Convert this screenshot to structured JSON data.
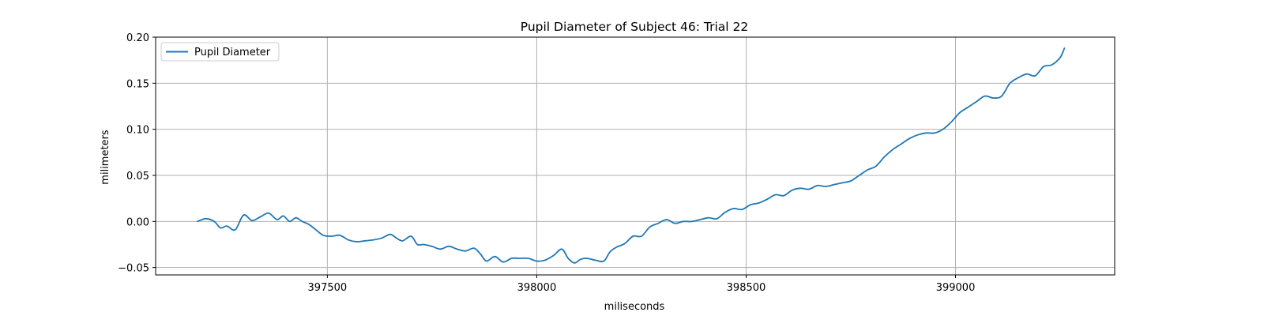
{
  "chart_data": {
    "type": "line",
    "title": "Pupil Diameter of Subject 46: Trial 22",
    "xlabel": "miliseconds",
    "ylabel": "milimeters",
    "xlim": [
      397090,
      399380
    ],
    "ylim": [
      -0.058,
      0.2
    ],
    "xticks": [
      397500,
      398000,
      398500,
      399000
    ],
    "yticks": [
      -0.05,
      0.0,
      0.05,
      0.1,
      0.15,
      0.2
    ],
    "xtick_labels": [
      "397500",
      "398000",
      "398500",
      "399000"
    ],
    "ytick_labels": [
      "−0.05",
      "0.00",
      "0.05",
      "0.10",
      "0.15",
      "0.20"
    ],
    "grid": true,
    "legend": {
      "position": "top-left",
      "entries": [
        "Pupil Diameter"
      ]
    },
    "series": [
      {
        "name": "Pupil Diameter",
        "color": "#1f77b4",
        "x": [
          397190,
          397210,
          397230,
          397245,
          397260,
          397280,
          397300,
          397320,
          397340,
          397360,
          397380,
          397395,
          397410,
          397425,
          397440,
          397455,
          397470,
          397490,
          397510,
          397530,
          397550,
          397570,
          397590,
          397610,
          397630,
          397650,
          397665,
          397680,
          397700,
          397715,
          397730,
          397750,
          397770,
          397790,
          397810,
          397830,
          397850,
          397865,
          397880,
          397900,
          397920,
          397940,
          397960,
          397980,
          398000,
          398020,
          398040,
          398060,
          398075,
          398090,
          398105,
          398120,
          398140,
          398160,
          398175,
          398190,
          398210,
          398230,
          398250,
          398270,
          398290,
          398310,
          398330,
          398350,
          398370,
          398390,
          398410,
          398430,
          398450,
          398470,
          398490,
          398510,
          398530,
          398550,
          398570,
          398590,
          398610,
          398630,
          398650,
          398670,
          398690,
          398710,
          398730,
          398750,
          398770,
          398790,
          398810,
          398830,
          398850,
          398870,
          398890,
          398910,
          398930,
          398950,
          398970,
          398990,
          399010,
          399030,
          399050,
          399070,
          399090,
          399110,
          399130,
          399150,
          399170,
          399190,
          399210,
          399230,
          399250,
          399260
        ],
        "y": [
          0.0,
          0.003,
          0.0,
          -0.007,
          -0.005,
          -0.009,
          0.007,
          0.001,
          0.005,
          0.009,
          0.002,
          0.006,
          0.0,
          0.004,
          0.0,
          -0.003,
          -0.008,
          -0.015,
          -0.016,
          -0.015,
          -0.02,
          -0.022,
          -0.021,
          -0.02,
          -0.018,
          -0.014,
          -0.018,
          -0.021,
          -0.016,
          -0.025,
          -0.025,
          -0.027,
          -0.03,
          -0.027,
          -0.03,
          -0.032,
          -0.029,
          -0.035,
          -0.043,
          -0.038,
          -0.044,
          -0.04,
          -0.04,
          -0.04,
          -0.043,
          -0.042,
          -0.037,
          -0.03,
          -0.04,
          -0.045,
          -0.041,
          -0.04,
          -0.042,
          -0.043,
          -0.033,
          -0.028,
          -0.024,
          -0.016,
          -0.016,
          -0.006,
          -0.002,
          0.002,
          -0.002,
          0.0,
          0.0,
          0.002,
          0.004,
          0.003,
          0.01,
          0.014,
          0.013,
          0.018,
          0.02,
          0.024,
          0.029,
          0.028,
          0.034,
          0.036,
          0.035,
          0.039,
          0.038,
          0.04,
          0.042,
          0.044,
          0.05,
          0.056,
          0.06,
          0.07,
          0.078,
          0.084,
          0.09,
          0.094,
          0.096,
          0.096,
          0.1,
          0.108,
          0.118,
          0.124,
          0.13,
          0.136,
          0.134,
          0.136,
          0.15,
          0.156,
          0.16,
          0.158,
          0.168,
          0.17,
          0.178,
          0.188
        ]
      }
    ]
  }
}
